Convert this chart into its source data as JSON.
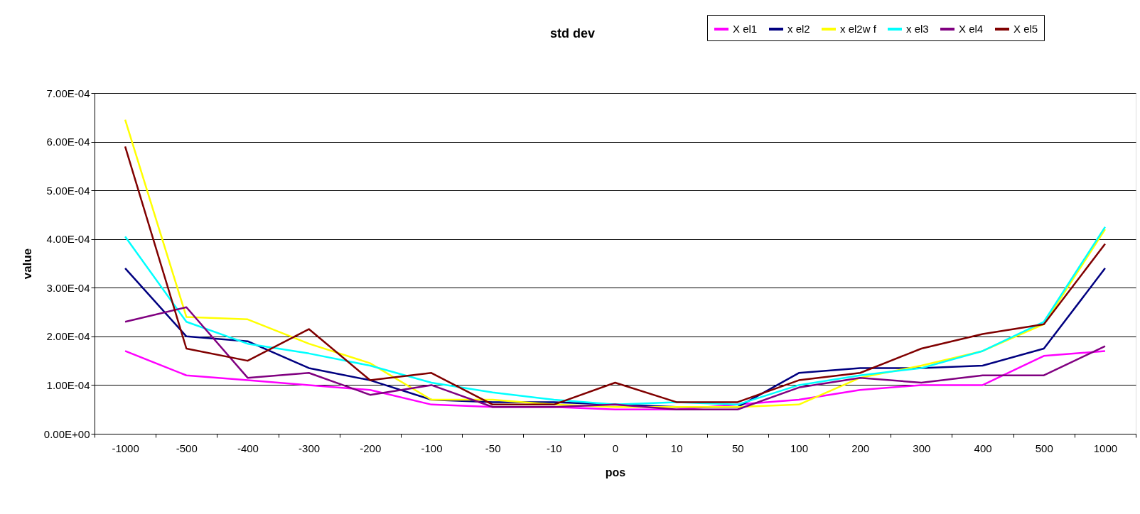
{
  "chart_data": {
    "type": "line",
    "title": "std dev",
    "xlabel": "pos",
    "ylabel": "value",
    "categories": [
      "-1000",
      "-500",
      "-400",
      "-300",
      "-200",
      "-100",
      "-50",
      "-10",
      "0",
      "10",
      "50",
      "100",
      "200",
      "300",
      "400",
      "500",
      "1000"
    ],
    "series": [
      {
        "name": "X el1",
        "color": "#ff00ff",
        "values": [
          0.00017,
          0.00012,
          0.00011,
          0.0001,
          9e-05,
          6e-05,
          5.5e-05,
          5.5e-05,
          5e-05,
          5e-05,
          6e-05,
          7e-05,
          9e-05,
          0.0001,
          0.0001,
          0.00016,
          0.00017
        ]
      },
      {
        "name": "x el2",
        "color": "#000080",
        "values": [
          0.00034,
          0.0002,
          0.00019,
          0.000135,
          0.00011,
          7e-05,
          6.5e-05,
          6.5e-05,
          6e-05,
          5.5e-05,
          5.5e-05,
          0.000125,
          0.000135,
          0.000135,
          0.00014,
          0.000175,
          0.00034
        ]
      },
      {
        "name": "x el2w f",
        "color": "#ffff00",
        "values": [
          0.000645,
          0.00024,
          0.000235,
          0.000185,
          0.000145,
          7e-05,
          7e-05,
          6e-05,
          5.5e-05,
          5.5e-05,
          5.5e-05,
          6e-05,
          0.000115,
          0.00014,
          0.00017,
          0.000225,
          0.00042
        ]
      },
      {
        "name": "x el3",
        "color": "#00ffff",
        "values": [
          0.000405,
          0.00023,
          0.000185,
          0.000165,
          0.00014,
          0.000105,
          8.5e-05,
          7e-05,
          6e-05,
          6.5e-05,
          6e-05,
          0.0001,
          0.00012,
          0.000135,
          0.00017,
          0.00023,
          0.000425
        ]
      },
      {
        "name": "X el4",
        "color": "#800080",
        "values": [
          0.00023,
          0.00026,
          0.000115,
          0.000125,
          8e-05,
          0.0001,
          5.5e-05,
          5.5e-05,
          6e-05,
          5e-05,
          5e-05,
          9.5e-05,
          0.000115,
          0.000105,
          0.00012,
          0.00012,
          0.00018
        ]
      },
      {
        "name": "X el5",
        "color": "#800000",
        "values": [
          0.00059,
          0.000175,
          0.00015,
          0.000215,
          0.00011,
          0.000125,
          6e-05,
          6e-05,
          0.000105,
          6.5e-05,
          6.5e-05,
          0.00011,
          0.000125,
          0.000175,
          0.000205,
          0.000225,
          0.00039
        ]
      }
    ],
    "ylim": [
      0,
      0.0007
    ],
    "yticks": [
      {
        "value": 0,
        "label": "0.00E+00"
      },
      {
        "value": 0.0001,
        "label": "1.00E-04"
      },
      {
        "value": 0.0002,
        "label": "2.00E-04"
      },
      {
        "value": 0.0003,
        "label": "3.00E-04"
      },
      {
        "value": 0.0004,
        "label": "4.00E-04"
      },
      {
        "value": 0.0005,
        "label": "5.00E-04"
      },
      {
        "value": 0.0006,
        "label": "6.00E-04"
      },
      {
        "value": 0.0007,
        "label": "7.00E-04"
      }
    ],
    "grid": "y",
    "legend": "top right",
    "marker": "none",
    "line_style": "solid"
  }
}
